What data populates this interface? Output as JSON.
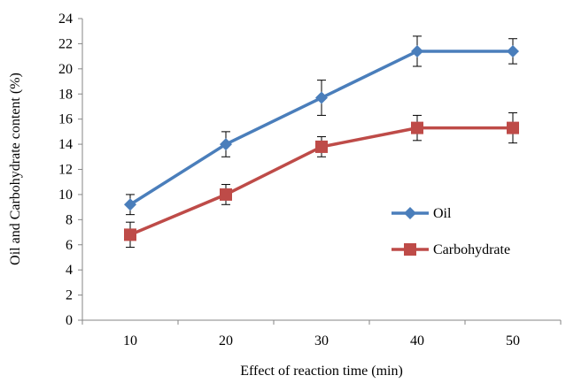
{
  "chart_data": {
    "type": "line",
    "title": "",
    "xlabel": "Effect of reaction time (min)",
    "ylabel": "Oil and Carbohydrate content (%)",
    "categories": [
      "10",
      "20",
      "30",
      "40",
      "50"
    ],
    "ylim": [
      0,
      24
    ],
    "yticks": [
      0,
      2,
      4,
      6,
      8,
      10,
      12,
      14,
      16,
      18,
      20,
      22,
      24
    ],
    "grid": false,
    "legend_position": "right",
    "series": [
      {
        "name": "Oil",
        "marker": "diamond",
        "color": "#4a7ebb",
        "values": [
          9.2,
          14.0,
          17.7,
          21.4,
          21.4
        ],
        "error": [
          0.8,
          1.0,
          1.4,
          1.2,
          1.0
        ]
      },
      {
        "name": "Carbohydrate",
        "marker": "square",
        "color": "#be4b48",
        "values": [
          6.8,
          10.0,
          13.8,
          15.3,
          15.3
        ],
        "error": [
          1.0,
          0.8,
          0.8,
          1.0,
          1.2
        ]
      }
    ]
  }
}
